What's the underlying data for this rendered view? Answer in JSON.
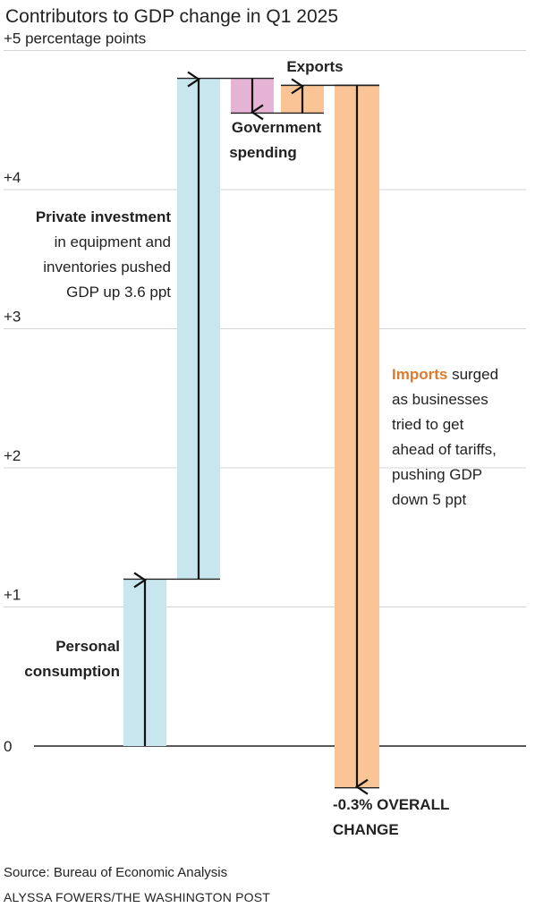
{
  "colors": {
    "consumption": "#c8e6ee",
    "investment": "#c8e6ee",
    "government": "#e5b3d4",
    "exports": "#fac496",
    "imports": "#fac496",
    "teal_text": "#2a7a8c",
    "purple_text": "#8e3785",
    "orange_text": "#dd7b2c",
    "grid": "#d4d4d4"
  },
  "chart_data": {
    "type": "waterfall",
    "title": "Contributors to GDP change in Q1 2025",
    "ylabel": "percentage points",
    "ylim": [
      -0.5,
      5.1
    ],
    "yticks": [
      {
        "value": 5,
        "label": "+5 percentage points"
      },
      {
        "value": 4,
        "label": "+4"
      },
      {
        "value": 3,
        "label": "+3"
      },
      {
        "value": 2,
        "label": "+2"
      },
      {
        "value": 1,
        "label": "+1"
      },
      {
        "value": 0,
        "label": "0"
      }
    ],
    "steps": [
      {
        "key": "consumption",
        "start": 0,
        "end": 1.2
      },
      {
        "key": "investment",
        "start": 1.2,
        "end": 4.8
      },
      {
        "key": "government",
        "start": 4.8,
        "end": 4.55
      },
      {
        "key": "exports",
        "start": 4.55,
        "end": 4.75
      },
      {
        "key": "imports",
        "start": 4.75,
        "end": -0.3
      }
    ],
    "annotations": {
      "consumption": [
        "Personal",
        "consumption"
      ],
      "investment_bold": "Private investment",
      "investment_rest": [
        "in equipment and",
        "inventories pushed",
        "GDP up 3.6 ppt"
      ],
      "government": [
        "Government",
        "spending"
      ],
      "exports": "Exports",
      "imports_bold": "Imports",
      "imports_first_rest": " surged",
      "imports_rest": [
        "as businesses",
        "tried to get",
        "ahead of tariffs,",
        "pushing GDP",
        "down 5 ppt"
      ],
      "overall": [
        "-0.3% OVERALL",
        "CHANGE"
      ]
    }
  },
  "footer": {
    "source": "Source: Bureau of Economic Analysis",
    "credit": "ALYSSA FOWERS/THE WASHINGTON POST"
  }
}
